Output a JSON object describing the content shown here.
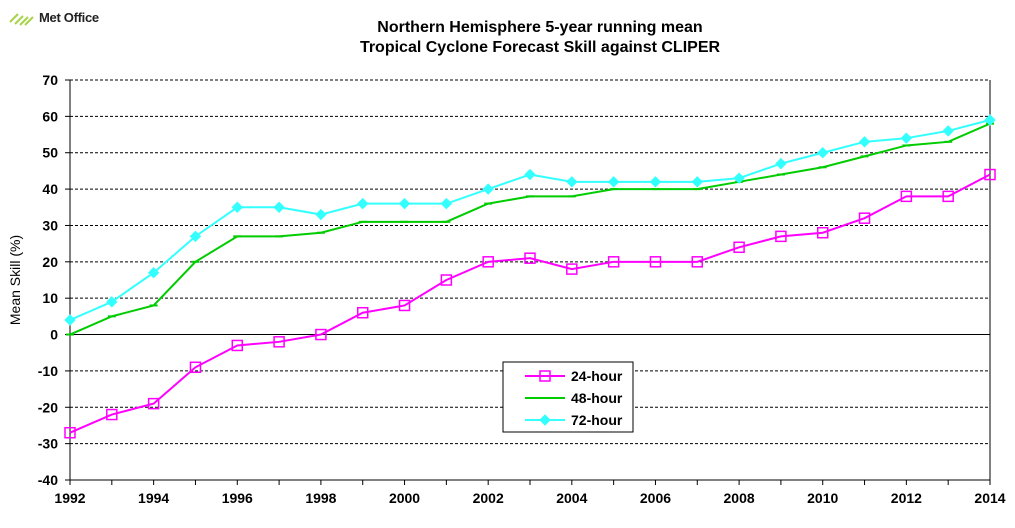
{
  "logo": {
    "text": "Met Office"
  },
  "chart_data": {
    "type": "line",
    "title": [
      "Northern Hemisphere 5-year running mean",
      "Tropical Cyclone Forecast Skill against CLIPER"
    ],
    "xlabel": "",
    "ylabel": "Mean Skill  (%)",
    "xlim": [
      1992,
      2014
    ],
    "ylim": [
      -40,
      70
    ],
    "x_ticks": [
      "1992",
      "1994",
      "1996",
      "1998",
      "2000",
      "2002",
      "2004",
      "2006",
      "2008",
      "2010",
      "2012",
      "2014"
    ],
    "y_ticks": [
      "-40",
      "-30",
      "-20",
      "-10",
      "0",
      "10",
      "20",
      "30",
      "40",
      "50",
      "60",
      "70"
    ],
    "grid": "horizontal dashed",
    "legend_position": "bottom-center",
    "x": [
      1992,
      1993,
      1994,
      1995,
      1996,
      1997,
      1998,
      1999,
      2000,
      2001,
      2002,
      2003,
      2004,
      2005,
      2006,
      2007,
      2008,
      2009,
      2010,
      2011,
      2012,
      2013,
      2014
    ],
    "series": [
      {
        "name": "24-hour",
        "color": "#ff00ff",
        "marker": "square-open",
        "values": [
          -27,
          -22,
          -19,
          -9,
          -3,
          -2,
          0,
          6,
          8,
          15,
          20,
          21,
          18,
          20,
          20,
          20,
          24,
          27,
          28,
          32,
          38,
          38,
          44
        ]
      },
      {
        "name": "48-hour",
        "color": "#00cc00",
        "marker": "dash",
        "values": [
          0,
          5,
          8,
          20,
          27,
          27,
          28,
          31,
          31,
          31,
          36,
          38,
          38,
          40,
          40,
          40,
          42,
          44,
          46,
          49,
          52,
          53,
          58
        ]
      },
      {
        "name": "72-hour",
        "color": "#33ffff",
        "marker": "diamond",
        "values": [
          4,
          9,
          17,
          27,
          35,
          35,
          33,
          36,
          36,
          36,
          40,
          44,
          42,
          42,
          42,
          42,
          43,
          47,
          50,
          53,
          54,
          56,
          59
        ]
      }
    ]
  }
}
